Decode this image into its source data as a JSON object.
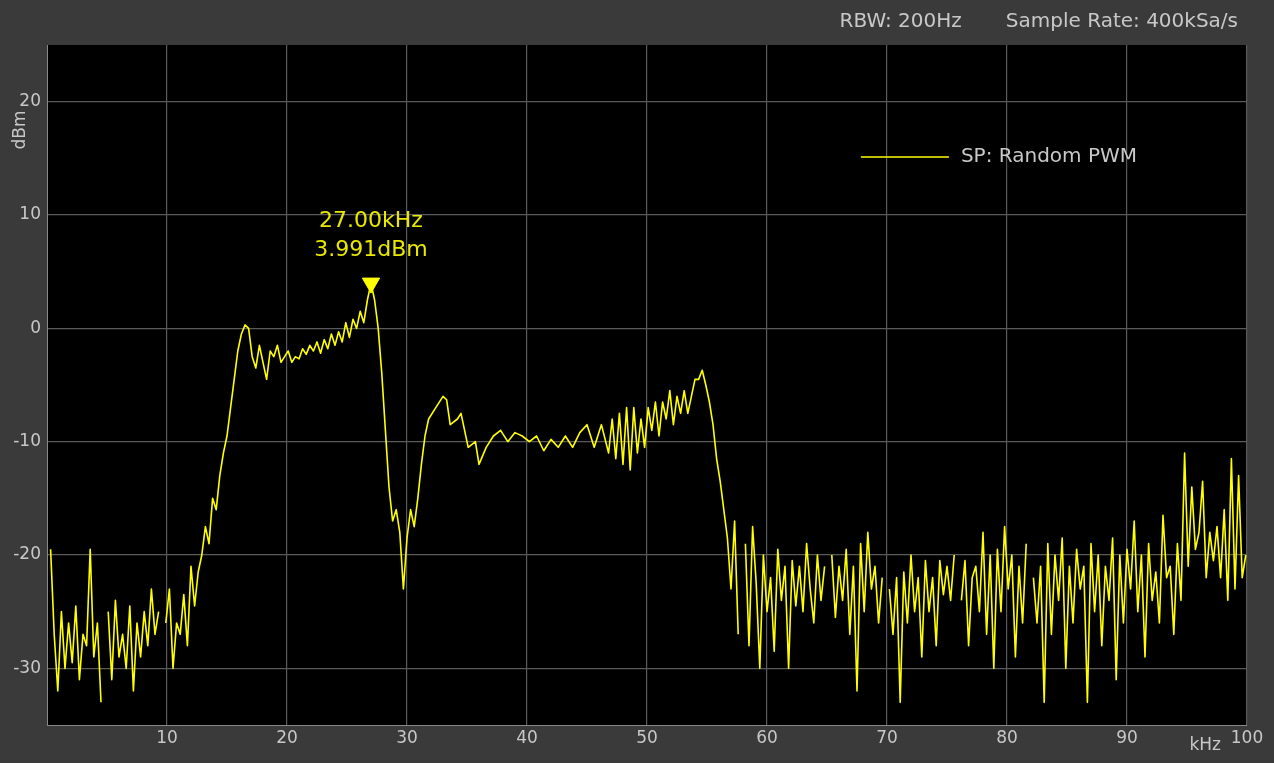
{
  "chart_data": {
    "type": "line",
    "xlabel": "kHz",
    "ylabel": "dBm",
    "xlim": [
      0,
      100
    ],
    "ylim": [
      -35,
      25
    ],
    "xticks": [
      10,
      20,
      30,
      40,
      50,
      60,
      70,
      80,
      90,
      100
    ],
    "yticks": [
      -30,
      -20,
      -10,
      0,
      10,
      20
    ],
    "grid": true,
    "legend": "top right",
    "annotations": [
      "RBW: 200Hz",
      "Sample Rate: 400kSa/s",
      {
        "text": "27.00kHz",
        "x": 27,
        "y": 3.991
      },
      {
        "text": "3.991dBm",
        "x": 27,
        "y": 3.991
      }
    ],
    "series": [
      {
        "name": "SP: Random PWM",
        "color": "#ffff00",
        "marker": "none",
        "x": [
          0.3,
          0.6,
          0.9,
          1.2,
          1.5,
          1.8,
          2.1,
          2.4,
          2.7,
          3.0,
          3.3,
          3.6,
          3.9,
          4.2,
          4.5,
          4.8,
          5.1,
          5.4,
          5.7,
          6.0,
          6.3,
          6.6,
          6.9,
          7.2,
          7.5,
          7.8,
          8.1,
          8.4,
          8.7,
          9.0,
          9.3,
          9.6,
          9.9,
          10.2,
          10.5,
          10.8,
          11.1,
          11.4,
          11.7,
          12.0,
          12.3,
          12.6,
          12.9,
          13.2,
          13.5,
          13.8,
          14.1,
          14.4,
          14.7,
          15.0,
          15.3,
          15.6,
          15.9,
          16.2,
          16.5,
          16.8,
          17.1,
          17.4,
          17.7,
          18.0,
          18.3,
          18.6,
          18.9,
          19.2,
          19.5,
          19.8,
          20.1,
          20.4,
          20.7,
          21.0,
          21.3,
          21.6,
          21.9,
          22.2,
          22.5,
          22.8,
          23.1,
          23.4,
          23.7,
          24.0,
          24.3,
          24.6,
          24.9,
          25.2,
          25.5,
          25.8,
          26.1,
          26.4,
          26.7,
          27.0,
          27.3,
          27.6,
          27.9,
          28.2,
          28.5,
          28.8,
          29.1,
          29.4,
          29.7,
          30.0,
          30.3,
          30.6,
          30.9,
          31.2,
          31.5,
          31.8,
          32.4,
          33.0,
          33.3,
          33.6,
          34.2,
          34.5,
          35.1,
          35.7,
          36.0,
          36.6,
          37.2,
          37.8,
          38.4,
          39.0,
          39.6,
          40.2,
          40.8,
          41.4,
          42.0,
          42.6,
          43.2,
          43.8,
          44.4,
          45.0,
          45.6,
          46.2,
          46.8,
          47.1,
          47.4,
          47.7,
          48.0,
          48.3,
          48.6,
          48.9,
          49.2,
          49.5,
          49.8,
          50.1,
          50.4,
          50.7,
          51.0,
          51.3,
          51.6,
          51.9,
          52.2,
          52.5,
          52.8,
          53.1,
          53.4,
          53.7,
          54.0,
          54.3,
          54.6,
          54.9,
          55.2,
          55.5,
          55.8,
          56.1,
          56.4,
          56.7,
          57.0,
          57.3,
          57.6,
          57.9,
          58.2,
          58.5,
          58.8,
          59.1,
          59.4,
          59.7,
          60.0,
          60.3,
          60.6,
          60.9,
          61.2,
          61.5,
          61.8,
          62.1,
          62.4,
          62.7,
          63.0,
          63.3,
          63.6,
          63.9,
          64.2,
          64.5,
          64.8,
          65.1,
          65.4,
          65.7,
          66.0,
          66.3,
          66.6,
          66.9,
          67.2,
          67.5,
          67.8,
          68.1,
          68.4,
          68.7,
          69.0,
          69.3,
          69.6,
          69.9,
          70.2,
          70.5,
          70.8,
          71.1,
          71.4,
          71.7,
          72.0,
          72.3,
          72.6,
          72.9,
          73.2,
          73.5,
          73.8,
          74.1,
          74.4,
          74.7,
          75.0,
          75.3,
          75.6,
          75.9,
          76.2,
          76.5,
          76.8,
          77.1,
          77.4,
          77.7,
          78.0,
          78.3,
          78.6,
          78.9,
          79.2,
          79.5,
          79.8,
          80.1,
          80.4,
          80.7,
          81.0,
          81.3,
          81.6,
          81.9,
          82.2,
          82.5,
          82.8,
          83.1,
          83.4,
          83.7,
          84.0,
          84.3,
          84.6,
          84.9,
          85.2,
          85.5,
          85.8,
          86.1,
          86.4,
          86.7,
          87.0,
          87.3,
          87.6,
          87.9,
          88.2,
          88.5,
          88.8,
          89.1,
          89.4,
          89.7,
          90.0,
          90.3,
          90.6,
          90.9,
          91.2,
          91.5,
          91.8,
          92.1,
          92.4,
          92.7,
          93.0,
          93.3,
          93.6,
          93.9,
          94.2,
          94.5,
          94.8,
          95.1,
          95.4,
          95.7,
          96.0,
          96.3,
          96.6,
          96.9,
          97.2,
          97.5,
          97.8,
          98.1,
          98.4,
          98.7,
          99.0,
          99.3,
          99.6,
          99.9
        ],
        "values": [
          -19.5,
          -27,
          -32,
          -25,
          -30,
          -26,
          -29.5,
          -24.5,
          -31,
          -27,
          -28,
          -19.5,
          -29,
          -26,
          -33,
          null,
          -25,
          -31,
          -24,
          -29,
          -27,
          -30,
          -24.5,
          -32,
          -26,
          -29,
          -25,
          -28,
          -23,
          -27,
          -25,
          null,
          -26,
          -23,
          -30,
          -26,
          -27,
          -23.5,
          -28,
          -21,
          -24.5,
          -21.5,
          -20,
          -17.5,
          -19,
          -15,
          -16,
          -13,
          -11,
          -9.5,
          -7,
          -4.5,
          -2,
          -0.5,
          0.3,
          0,
          -2.5,
          -3.5,
          -1.5,
          -3,
          -4.5,
          -2,
          -2.5,
          -1.5,
          -3,
          -2.5,
          -2,
          -3,
          -2.5,
          -2.7,
          -1.8,
          -2.3,
          -1.5,
          -2,
          -1.2,
          -2.2,
          -1,
          -1.8,
          -0.5,
          -1.5,
          -0.3,
          -1.2,
          0.5,
          -0.8,
          0.8,
          0,
          1.5,
          0.5,
          2.5,
          3.991,
          2.5,
          0,
          -4,
          -9,
          -14,
          -17,
          -16,
          -18,
          -23,
          -18.5,
          -16,
          -17.5,
          -15,
          -12,
          -9.5,
          -8,
          -7,
          -6,
          -6.3,
          -8.5,
          -8,
          -7.5,
          -10.5,
          -10,
          -12,
          -10.5,
          -9.5,
          -9,
          -10,
          -9.2,
          -9.5,
          -10,
          -9.5,
          -10.8,
          -9.8,
          -10.5,
          -9.5,
          -10.5,
          -9.2,
          -8.5,
          -10.5,
          -8.5,
          -11,
          -8,
          -11.5,
          -7.5,
          -12,
          -7,
          -12.5,
          -7,
          -11,
          -8,
          -10.5,
          -7,
          -9,
          -6.5,
          -9.5,
          -6.5,
          -8,
          -5.5,
          -8.5,
          -6,
          -7.5,
          -5.5,
          -7.5,
          -6,
          -4.5,
          -4.5,
          -3.7,
          -5,
          -6.5,
          -8.5,
          -11.5,
          -13.5,
          -16,
          -18.5,
          -23,
          -17,
          -27,
          null,
          -19,
          -28,
          -17.5,
          -22.5,
          -30,
          -20,
          -25,
          -22,
          -28.5,
          -19.5,
          -24,
          -21,
          -30,
          -20.5,
          -24.5,
          -21,
          -25,
          -19,
          -23,
          -26,
          -20,
          -24,
          -21,
          null,
          -20,
          -25.5,
          -21,
          -24,
          -19.5,
          -27,
          -21,
          -32,
          -19,
          -25,
          -18,
          -23,
          -21,
          -26,
          -22,
          null,
          -23,
          -27,
          -22,
          -33,
          -21.5,
          -26,
          -20,
          -25,
          -22,
          -29,
          -20.5,
          -25,
          -22,
          -28,
          -20.5,
          -23.5,
          -21,
          -24,
          -20,
          null,
          -24,
          -20.5,
          -28,
          -22,
          -21,
          -25,
          -18,
          -27,
          -20,
          -30,
          -19.5,
          -25,
          -17.5,
          -23,
          -20,
          -29,
          -21,
          -26,
          -19,
          null,
          -22,
          -26,
          -21,
          -33,
          -19,
          -27,
          -20,
          -24,
          -18.5,
          -30,
          -21,
          -26,
          -19.5,
          -23,
          -21,
          -33,
          -19,
          -25,
          -20,
          -28,
          -21,
          -24,
          -18.5,
          -31,
          -20,
          -26,
          -19.5,
          -23,
          -17,
          -25,
          -20,
          -29,
          -19,
          -24,
          -21.5,
          -26,
          -16.5,
          -22,
          -21,
          -27,
          -19,
          -24,
          -11,
          -21,
          -14,
          -19.5,
          -18,
          -13.5,
          -22,
          -18,
          -20.5,
          -17.5,
          -22,
          -16,
          -24,
          -11.5,
          -23,
          -13,
          -22,
          -20
        ]
      },
      {
        "color": "#ffff00",
        "type": "scatter",
        "marker": "triangle",
        "x": [
          27
        ],
        "values": [
          3.991
        ]
      }
    ]
  }
}
